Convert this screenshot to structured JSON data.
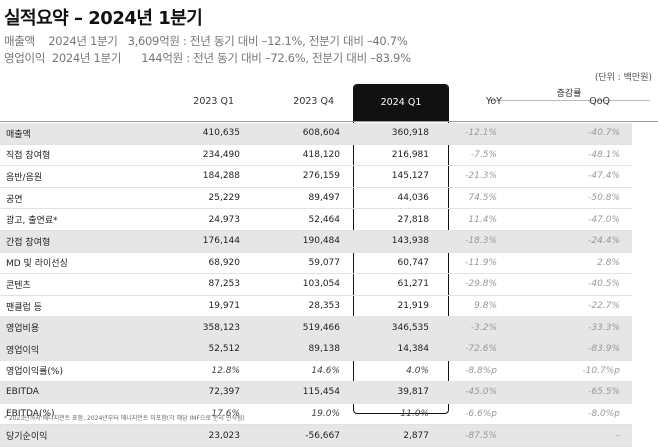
{
  "title": "실적요약 – 2024년 1분기",
  "summary": [
    {
      "label": "매출액",
      "period": "2024년 1분기",
      "value": "3,609억원 : 전년 동기 대비 –12.1%, 전분기 대비 –40.7%"
    },
    {
      "label": "영업이익",
      "period": "2024년 1분기",
      "value": "144억원 : 전년 동기 대비 –72.6%, 전분기 대비 –83.9%"
    }
  ],
  "unit": "(단위 : 백만원)",
  "table": {
    "change_group": "증감률",
    "columns": [
      "2023 Q1",
      "2023 Q4",
      "2024 Q1",
      "YoY",
      "QoQ"
    ],
    "rows": [
      {
        "label": "매출액",
        "v1": "410,635",
        "v2": "608,604",
        "v3": "360,918",
        "yoy": "-12.1%",
        "qoq": "-40.7%",
        "shade": true
      },
      {
        "label": "직접 참여형",
        "v1": "234,490",
        "v2": "418,120",
        "v3": "216,981",
        "yoy": "-7.5%",
        "qoq": "-48.1%"
      },
      {
        "label": "음반/음원",
        "v1": "184,288",
        "v2": "276,159",
        "v3": "145,127",
        "yoy": "-21.3%",
        "qoq": "-47.4%"
      },
      {
        "label": "공연",
        "v1": "25,229",
        "v2": "89,497",
        "v3": "44,036",
        "yoy": "74.5%",
        "qoq": "-50.8%"
      },
      {
        "label": "광고, 출연료*",
        "v1": "24,973",
        "v2": "52,464",
        "v3": "27,818",
        "yoy": "11.4%",
        "qoq": "-47.0%"
      },
      {
        "label": "간접 참여형",
        "v1": "176,144",
        "v2": "190,484",
        "v3": "143,938",
        "yoy": "-18.3%",
        "qoq": "-24.4%",
        "shade": true
      },
      {
        "label": "MD 및 라이선싱",
        "v1": "68,920",
        "v2": "59,077",
        "v3": "60,747",
        "yoy": "-11.9%",
        "qoq": "2.8%"
      },
      {
        "label": "콘텐츠",
        "v1": "87,253",
        "v2": "103,054",
        "v3": "61,271",
        "yoy": "-29.8%",
        "qoq": "-40.5%"
      },
      {
        "label": "팬클럽 등",
        "v1": "19,971",
        "v2": "28,353",
        "v3": "21,919",
        "yoy": "9.8%",
        "qoq": "-22.7%"
      },
      {
        "label": "영업비용",
        "v1": "358,123",
        "v2": "519,466",
        "v3": "346,535",
        "yoy": "-3.2%",
        "qoq": "-33.3%",
        "shade": true
      },
      {
        "label": "영업이익",
        "v1": "52,512",
        "v2": "89,138",
        "v3": "14,384",
        "yoy": "-72.6%",
        "qoq": "-83.9%",
        "shade": true
      },
      {
        "label": "영업이익률(%)",
        "v1": "12.8%",
        "v2": "14.6%",
        "v3": "4.0%",
        "yoy": "-8.8%p",
        "qoq": "-10.7%p",
        "ital": true
      },
      {
        "label": "EBITDA",
        "v1": "72,397",
        "v2": "115,454",
        "v3": "39,817",
        "yoy": "-45.0%",
        "qoq": "-65.5%",
        "shade": true
      },
      {
        "label": "EBITDA(%)",
        "v1": "17.6%",
        "v2": "19.0%",
        "v3": "11.0%",
        "yoy": "-6.6%p",
        "qoq": "-8.0%p",
        "ital": true
      },
      {
        "label": "당기순이익",
        "v1": "23,023",
        "v2": "-56,667",
        "v3": "2,877",
        "yoy": "-87.5%",
        "qoq": "–",
        "shade": true
      }
    ]
  },
  "footnote": "* 2023년까지 매니지먼트 포함, 2024년부터 매니지먼트 미포함(각 해당 IMF으로 분리 인식됨)"
}
